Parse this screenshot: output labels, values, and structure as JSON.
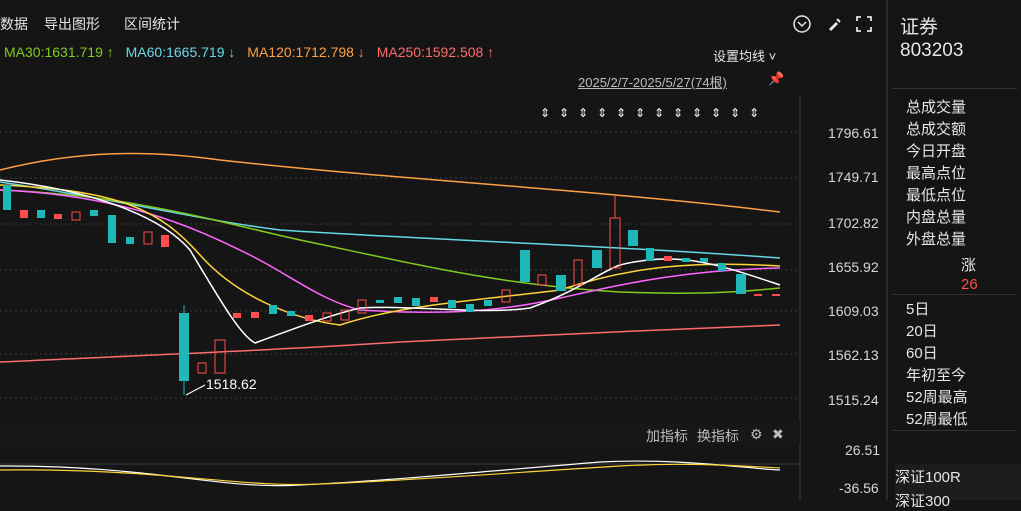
{
  "toolbar": {
    "item1": "数据",
    "item2": "导出图形",
    "item3": "区间统计"
  },
  "ma": {
    "ma30": "MA30:1631.719 ↑",
    "ma60": "MA60:1665.719 ↓",
    "ma120": "MA120:1712.798 ↓",
    "ma250": "MA250:1592.508 ↑"
  },
  "controls": {
    "setting": "设置均线 ˅",
    "range": "2025/2/7-2025/5/27(74根)"
  },
  "chart_data": {
    "type": "candlestick",
    "y_ticks": [
      "1796.61",
      "1749.71",
      "1702.82",
      "1655.92",
      "1609.03",
      "1562.13",
      "1515.24"
    ],
    "annotation": "1518.62",
    "indicator_ticks": [
      "26.51",
      "-36.56"
    ],
    "colors": {
      "ma30": "#82c91e",
      "ma60": "#66d9e8",
      "ma120": "#ff9f43",
      "ma250": "#ff6b6b",
      "up": "#ff4d4f",
      "down": "#1fb8b8"
    }
  },
  "indicator": {
    "add": "加指标",
    "switch": "换指标"
  },
  "side": {
    "title": "证券",
    "code": "803203",
    "items": [
      "总成交量",
      "总成交额",
      "今日开盘",
      "最高点位",
      "最低点位",
      "内盘总量",
      "外盘总量"
    ],
    "change_label": "涨",
    "change_value": "26",
    "periods": [
      "5日",
      "20日",
      "60日",
      "年初至今",
      "52周最高",
      "52周最低"
    ],
    "indices": [
      "深证100R",
      "深证300"
    ]
  }
}
